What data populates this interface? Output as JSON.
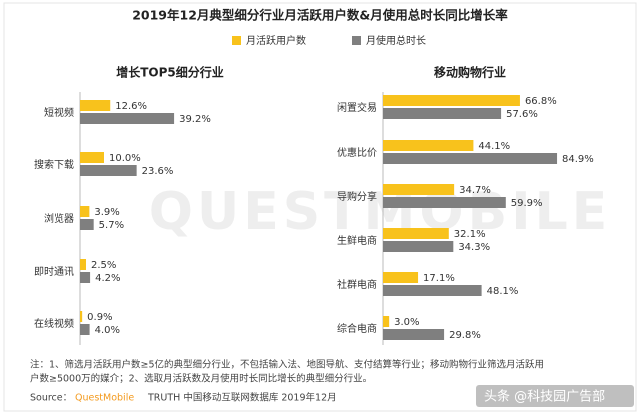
{
  "title": "2019年12月典型细分行业月活跃用户数&月使用总时长同比增长率",
  "watermark": "QUESTMOBILE",
  "notes": [
    "注：1、筛选月活跃用户数≥5亿的典型细分行业，不包括输入法、地图导航、支付结算等行业；移动购物行业筛选月活跃用",
    "户数≥5000万的媒介；2、选取月活跃数及月使用时长同比增长的典型细分行业。"
  ],
  "source": {
    "label": "Source：",
    "brand": "QuestMobile",
    "text": "TRUTH 中国移动互联网数据库 2019年12月"
  },
  "credit": "头条 @科技园广告部",
  "chart_data": [
    {
      "type": "bar",
      "orientation": "horizontal",
      "title": "增长TOP5细分行业",
      "categories": [
        "短视频",
        "搜索下载",
        "浏览器",
        "即时通讯",
        "在线视频"
      ],
      "series": [
        {
          "name": "月活跃用户数",
          "color": "#f8c21c",
          "values": [
            12.6,
            10.0,
            3.9,
            2.5,
            0.9
          ],
          "value_labels": [
            "12.6%",
            "10.0%",
            "3.9%",
            "2.5%",
            "0.9%"
          ]
        },
        {
          "name": "月使用总时长",
          "color": "#7f7f7f",
          "values": [
            39.2,
            23.6,
            5.7,
            4.2,
            4.0
          ],
          "value_labels": [
            "39.2%",
            "23.6%",
            "5.7%",
            "4.2%",
            "4.0%"
          ]
        }
      ]
    },
    {
      "type": "bar",
      "orientation": "horizontal",
      "title": "移动购物行业",
      "categories": [
        "闲置交易",
        "优惠比价",
        "导购分享",
        "生鲜电商",
        "社群电商",
        "综合电商"
      ],
      "series": [
        {
          "name": "月活跃用户数",
          "color": "#f8c21c",
          "values": [
            66.8,
            44.1,
            34.7,
            32.1,
            17.1,
            3.0
          ],
          "value_labels": [
            "66.8%",
            "44.1%",
            "34.7%",
            "32.1%",
            "17.1%",
            "3.0%"
          ]
        },
        {
          "name": "月使用总时长",
          "color": "#7f7f7f",
          "values": [
            57.6,
            84.9,
            59.9,
            34.3,
            48.1,
            29.8
          ],
          "value_labels": [
            "57.6%",
            "84.9%",
            "59.9%",
            "34.3%",
            "48.1%",
            "29.8%"
          ]
        }
      ]
    }
  ]
}
